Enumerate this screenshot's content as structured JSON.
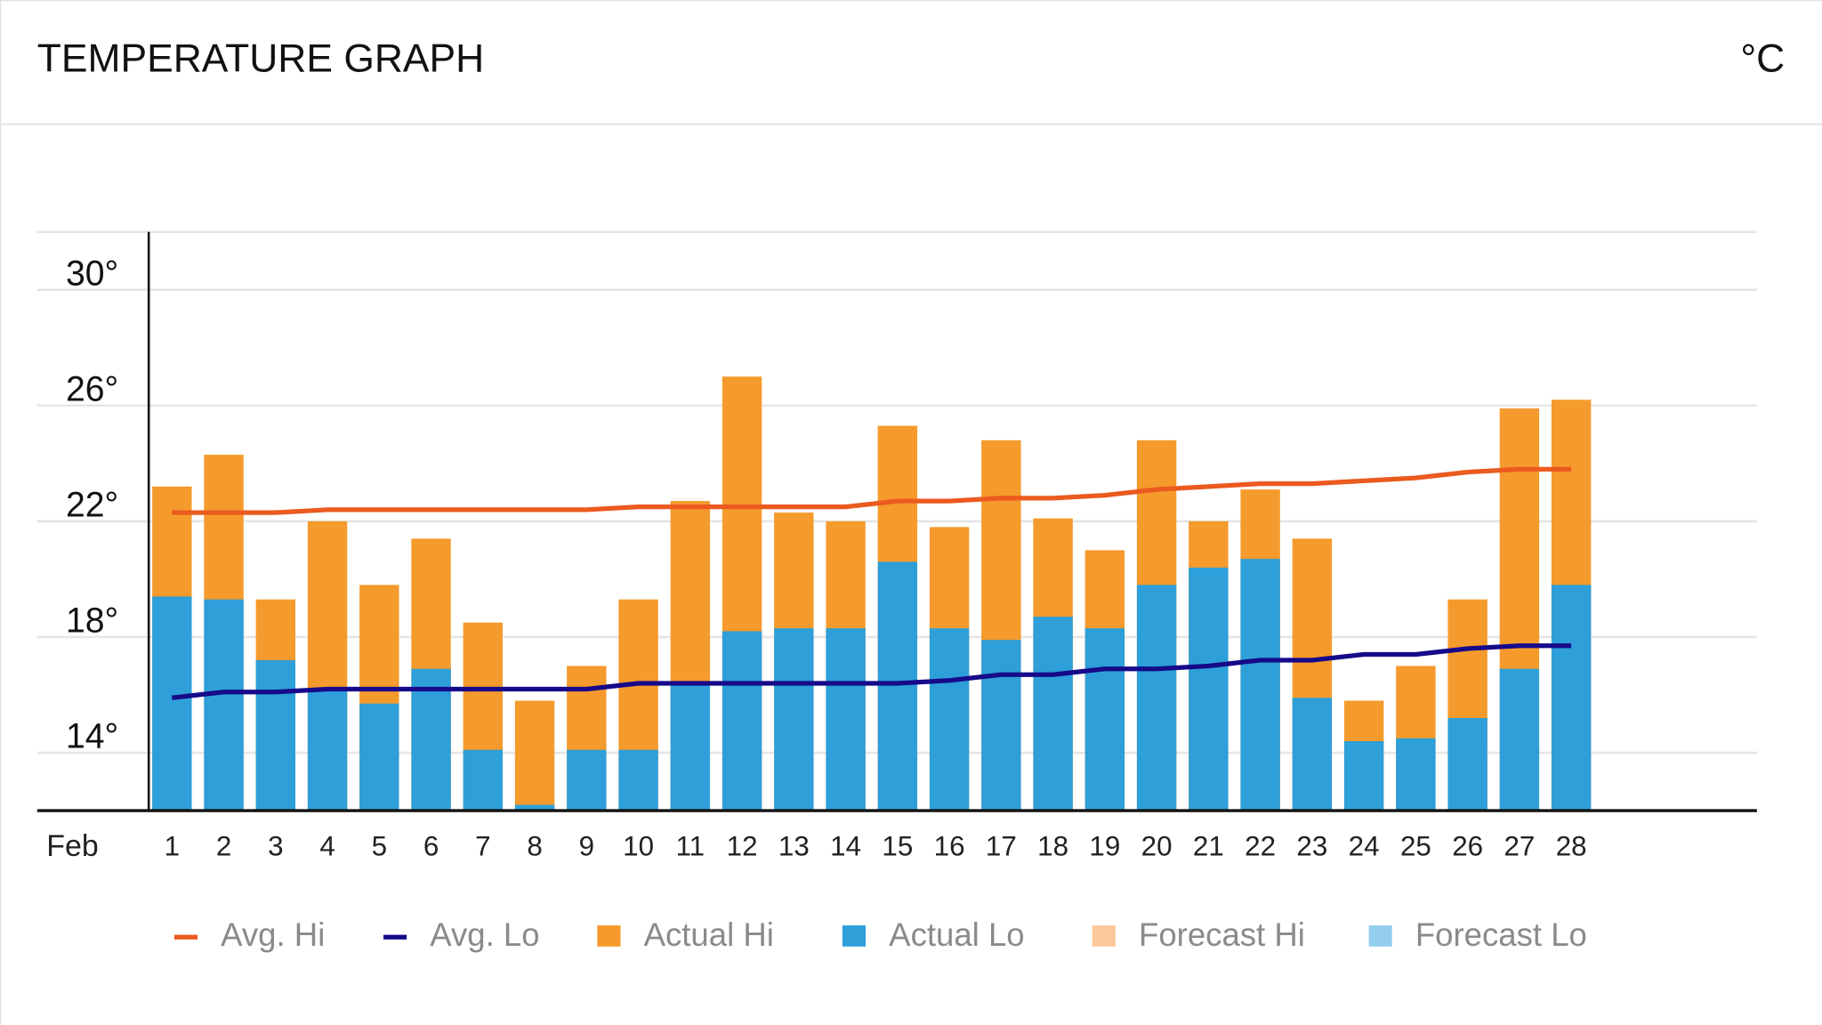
{
  "header": {
    "title": "TEMPERATURE GRAPH",
    "unit": "°C"
  },
  "chart_data": {
    "type": "bar",
    "x_label": "Feb",
    "categories": [
      "1",
      "2",
      "3",
      "4",
      "5",
      "6",
      "7",
      "8",
      "9",
      "10",
      "11",
      "12",
      "13",
      "14",
      "15",
      "16",
      "17",
      "18",
      "19",
      "20",
      "21",
      "22",
      "23",
      "24",
      "25",
      "26",
      "27",
      "28"
    ],
    "ylim": [
      12,
      32
    ],
    "yticks": [
      {
        "value": 14,
        "label": "14°"
      },
      {
        "value": 18,
        "label": "18°"
      },
      {
        "value": 22,
        "label": "22°"
      },
      {
        "value": 26,
        "label": "26°"
      },
      {
        "value": 30,
        "label": "30°"
      }
    ],
    "grid": true,
    "series": [
      {
        "name": "Avg. Hi",
        "color": "#eb5a1e",
        "kind": "line",
        "values": [
          22.3,
          22.3,
          22.3,
          22.4,
          22.4,
          22.4,
          22.4,
          22.4,
          22.4,
          22.5,
          22.5,
          22.5,
          22.5,
          22.5,
          22.7,
          22.7,
          22.8,
          22.8,
          22.9,
          23.1,
          23.2,
          23.3,
          23.3,
          23.4,
          23.5,
          23.7,
          23.8,
          23.8
        ]
      },
      {
        "name": "Avg. Lo",
        "color": "#160a8a",
        "kind": "line",
        "values": [
          15.9,
          16.1,
          16.1,
          16.2,
          16.2,
          16.2,
          16.2,
          16.2,
          16.2,
          16.4,
          16.4,
          16.4,
          16.4,
          16.4,
          16.4,
          16.5,
          16.7,
          16.7,
          16.9,
          16.9,
          17.0,
          17.2,
          17.2,
          17.4,
          17.4,
          17.6,
          17.7,
          17.7
        ]
      },
      {
        "name": "Actual Hi",
        "color": "#f59a2c",
        "kind": "bar",
        "values": [
          23.2,
          24.3,
          19.3,
          22.0,
          19.8,
          21.4,
          18.5,
          15.8,
          17.0,
          19.3,
          22.7,
          27.0,
          22.3,
          22.0,
          25.3,
          21.8,
          24.8,
          22.1,
          21.0,
          24.8,
          22.0,
          23.1,
          21.4,
          15.8,
          17.0,
          19.3,
          25.9,
          26.2
        ]
      },
      {
        "name": "Actual Lo",
        "color": "#2e9fd9",
        "kind": "bar",
        "values": [
          19.4,
          19.3,
          17.2,
          16.2,
          15.7,
          16.9,
          14.1,
          12.2,
          14.1,
          14.1,
          16.4,
          18.2,
          18.3,
          18.3,
          20.6,
          18.3,
          17.9,
          18.7,
          18.3,
          19.8,
          20.4,
          20.7,
          15.9,
          14.4,
          14.5,
          15.2,
          16.9,
          19.8
        ]
      },
      {
        "name": "Forecast Hi",
        "color": "#fcc89a",
        "kind": "bar",
        "values": [
          null,
          null,
          null,
          null,
          null,
          null,
          null,
          null,
          null,
          null,
          null,
          null,
          null,
          null,
          null,
          null,
          null,
          null,
          null,
          null,
          null,
          null,
          null,
          null,
          null,
          null,
          null,
          null
        ]
      },
      {
        "name": "Forecast Lo",
        "color": "#93ceef",
        "kind": "bar",
        "values": [
          null,
          null,
          null,
          null,
          null,
          null,
          null,
          null,
          null,
          null,
          null,
          null,
          null,
          null,
          null,
          null,
          null,
          null,
          null,
          null,
          null,
          null,
          null,
          null,
          null,
          null,
          null,
          null
        ]
      }
    ]
  }
}
